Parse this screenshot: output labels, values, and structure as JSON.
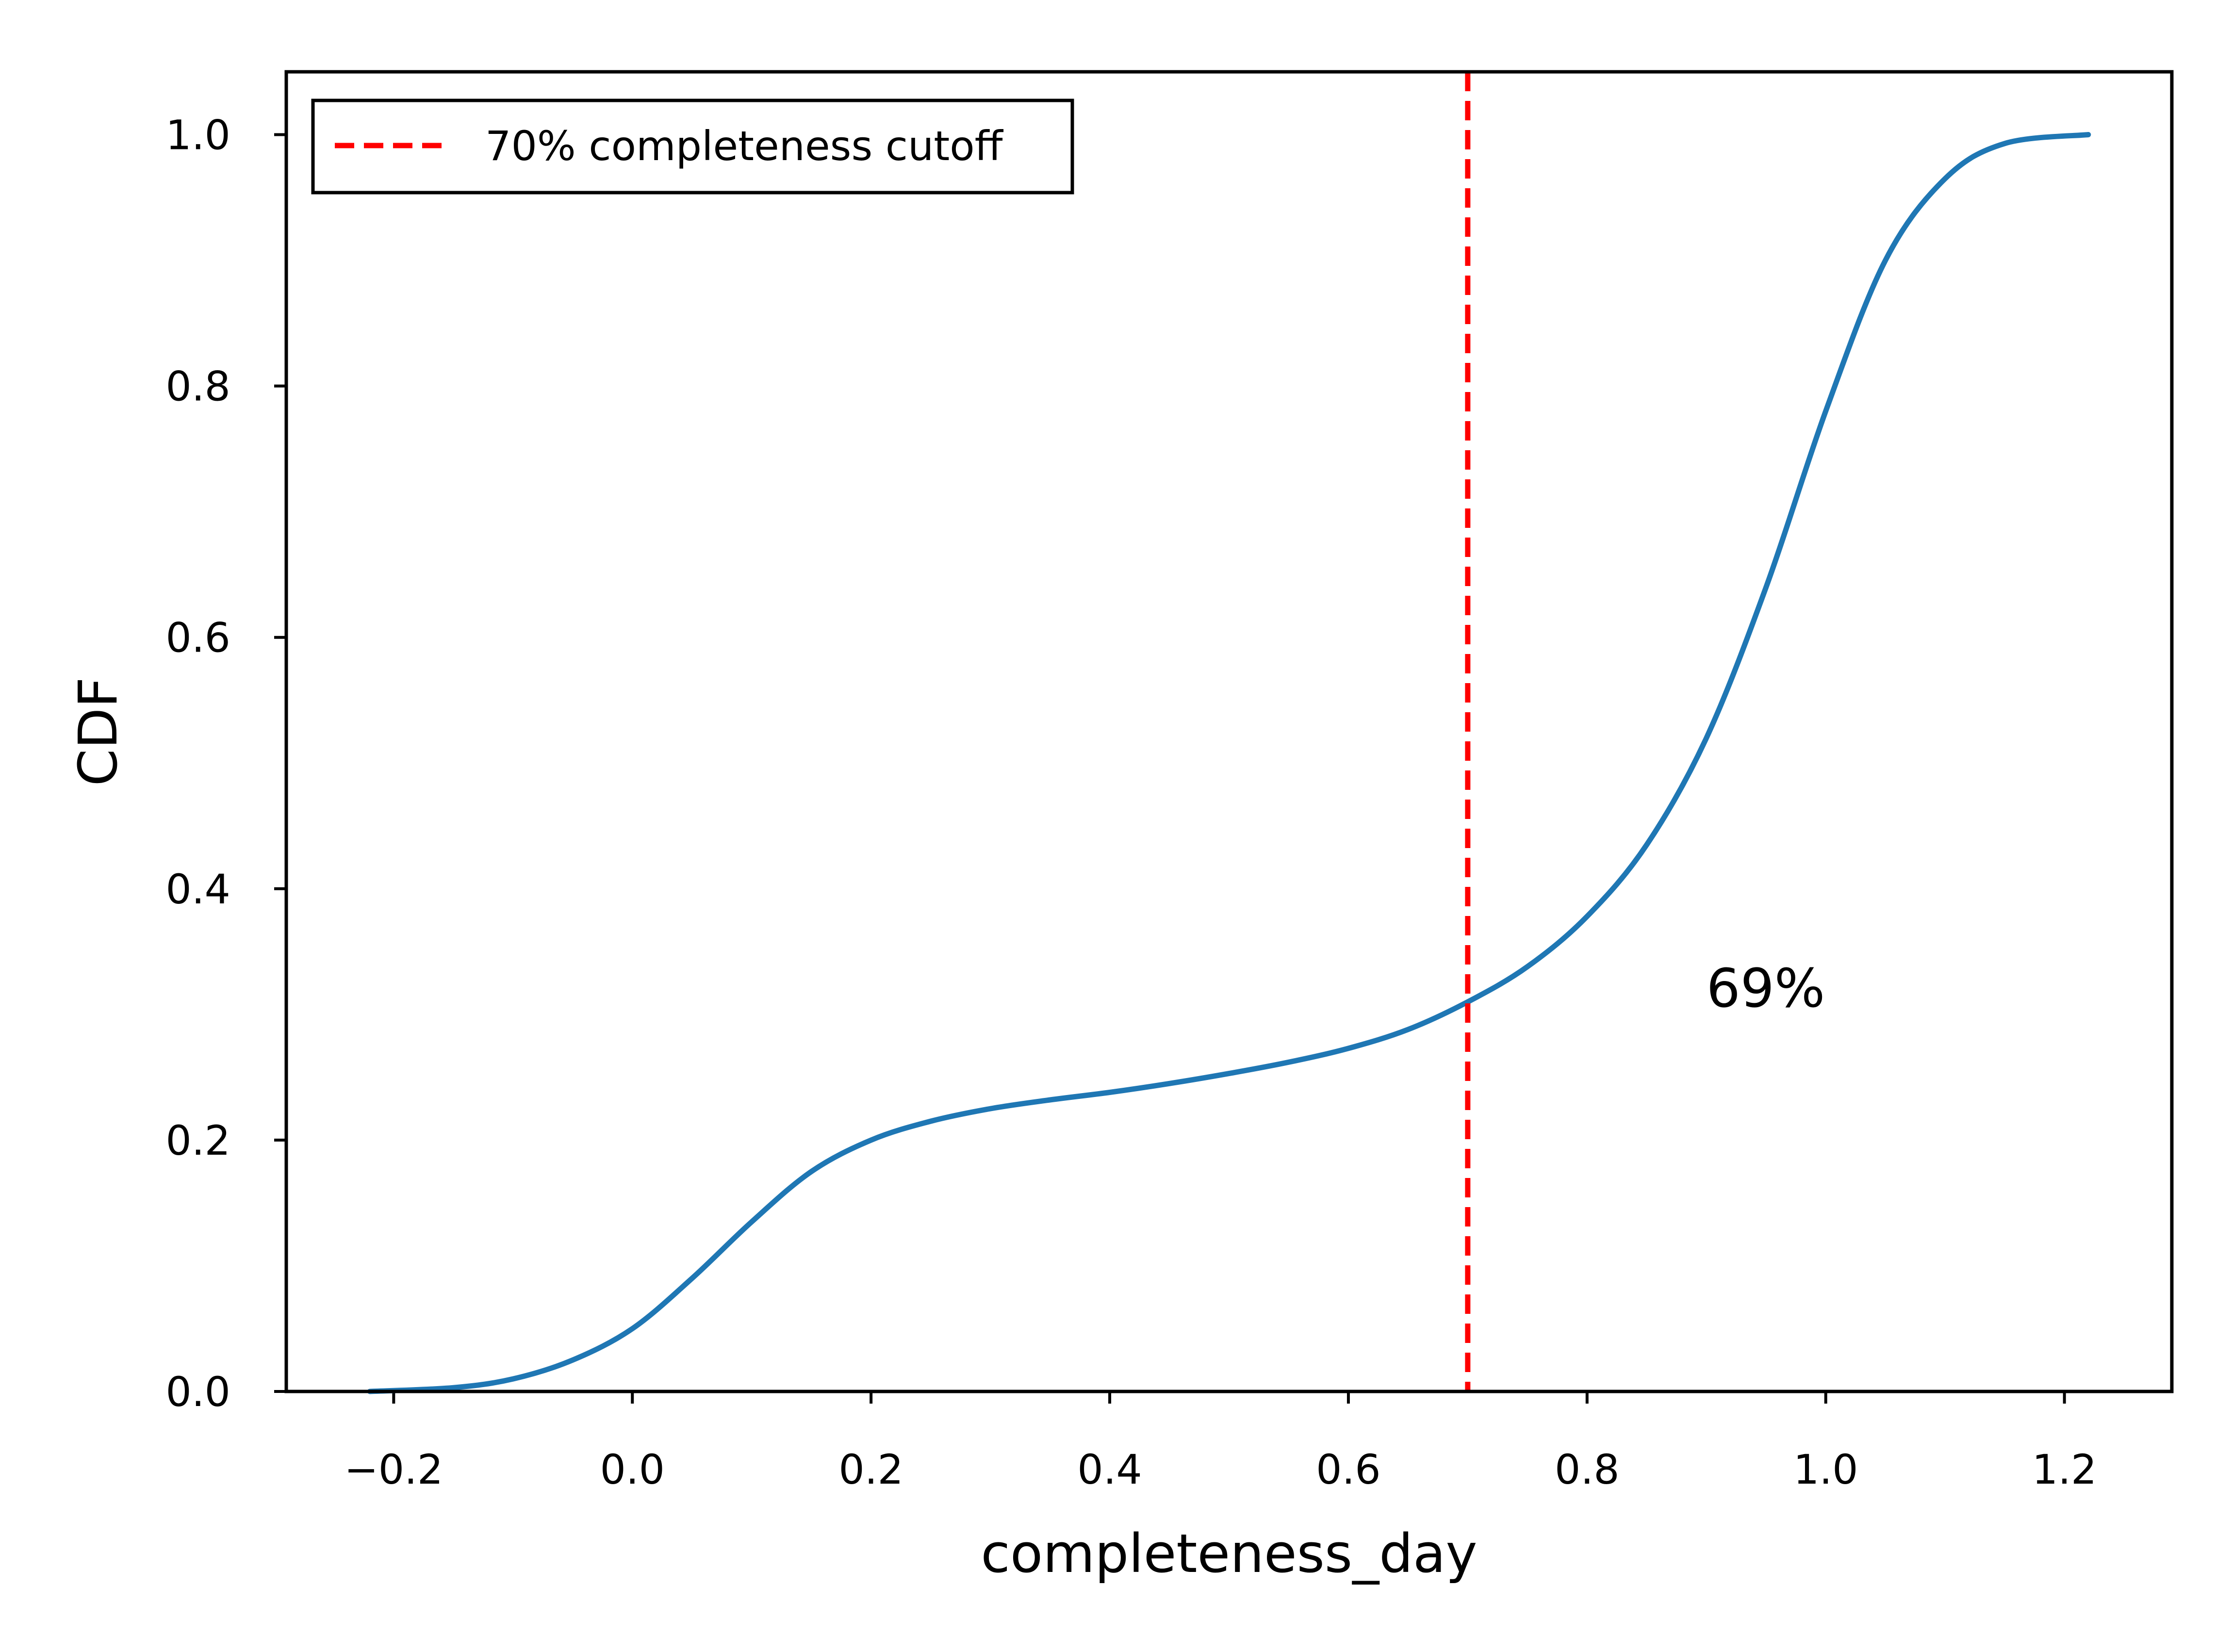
{
  "chart_data": {
    "type": "line",
    "title": "",
    "xlabel": "completeness_day",
    "ylabel": "CDF",
    "xlim": [
      -0.29,
      1.29
    ],
    "ylim": [
      0.0,
      1.05
    ],
    "xticks": [
      -0.2,
      0.0,
      0.2,
      0.4,
      0.6,
      0.8,
      1.0,
      1.2
    ],
    "xtick_labels": [
      "−0.2",
      "0.0",
      "0.2",
      "0.4",
      "0.6",
      "0.8",
      "1.0",
      "1.2"
    ],
    "yticks": [
      0.0,
      0.2,
      0.4,
      0.6,
      0.8,
      1.0
    ],
    "ytick_labels": [
      "0.0",
      "0.2",
      "0.4",
      "0.6",
      "0.8",
      "1.0"
    ],
    "grid": false,
    "legend_position": "top-left",
    "series": [
      {
        "color": "#1f77b4",
        "x": [
          -0.22,
          -0.15,
          -0.1,
          -0.05,
          0.0,
          0.05,
          0.1,
          0.15,
          0.2,
          0.25,
          0.3,
          0.35,
          0.4,
          0.45,
          0.5,
          0.55,
          0.6,
          0.65,
          0.7,
          0.75,
          0.8,
          0.85,
          0.9,
          0.95,
          1.0,
          1.05,
          1.1,
          1.15,
          1.22
        ],
        "y": [
          0.0,
          0.003,
          0.01,
          0.025,
          0.05,
          0.09,
          0.135,
          0.175,
          0.2,
          0.215,
          0.225,
          0.232,
          0.238,
          0.245,
          0.253,
          0.262,
          0.273,
          0.288,
          0.31,
          0.338,
          0.378,
          0.435,
          0.52,
          0.64,
          0.78,
          0.9,
          0.965,
          0.993,
          1.0
        ]
      }
    ],
    "cutoff": {
      "x": 0.7,
      "label": "70% completeness cutoff",
      "color": "#ff0000"
    },
    "annotation": {
      "text": "69%",
      "x": 0.9,
      "y": 0.31
    }
  }
}
